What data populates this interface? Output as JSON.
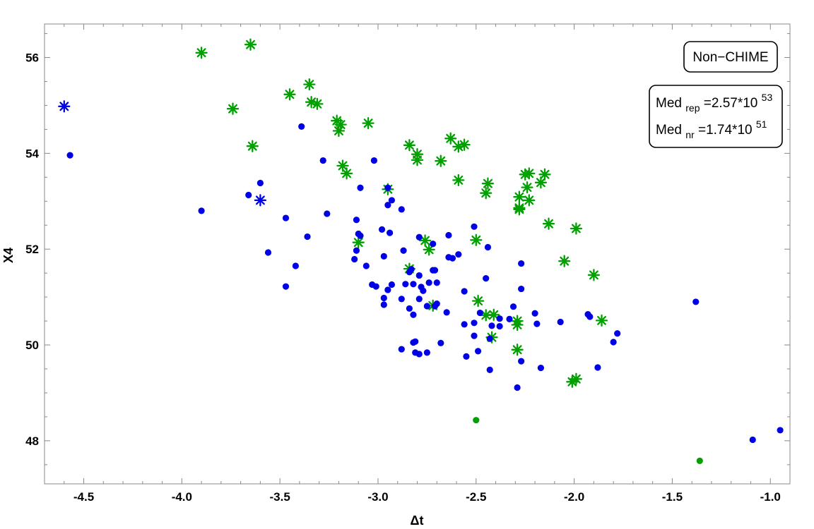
{
  "chart_data": {
    "type": "scatter",
    "xlabel": "Δt",
    "ylabel": "X4",
    "xlim": [
      -4.7,
      -0.9
    ],
    "ylim": [
      47.1,
      56.7
    ],
    "x_ticks": [
      -4.5,
      -4.0,
      -3.5,
      -3.0,
      -2.5,
      -2.0,
      -1.5,
      -1.0
    ],
    "x_tick_labels": [
      "-4.5",
      "-4.0",
      "-3.5",
      "-3.0",
      "-2.5",
      "-2.0",
      "-1.5",
      "-1.0"
    ],
    "y_ticks": [
      48,
      50,
      52,
      54,
      56
    ],
    "y_tick_labels": [
      "48",
      "50",
      "52",
      "54",
      "56"
    ],
    "grid": false,
    "colors": {
      "blue": "#0000e6",
      "green": "#00a000"
    },
    "annotations": {
      "category_box": "Non−CHIME",
      "median_rep": {
        "main": "Med",
        "sub": "rep",
        "value": "=2.57*10",
        "exp": "53"
      },
      "median_nr": {
        "main": "Med",
        "sub": "nr",
        "value": "=1.74*10",
        "exp": "51"
      }
    },
    "series": [
      {
        "color": "#00a000",
        "marker": "star",
        "points": [
          [
            -3.9,
            56.1
          ],
          [
            -3.65,
            56.27
          ],
          [
            -3.74,
            54.93
          ],
          [
            -3.64,
            54.15
          ],
          [
            -3.45,
            55.23
          ],
          [
            -3.35,
            55.44
          ],
          [
            -3.34,
            55.07
          ],
          [
            -3.31,
            55.03
          ],
          [
            -3.21,
            54.68
          ],
          [
            -3.19,
            54.6
          ],
          [
            -3.2,
            54.47
          ],
          [
            -3.05,
            54.63
          ],
          [
            -3.18,
            53.74
          ],
          [
            -3.16,
            53.58
          ],
          [
            -2.84,
            54.17
          ],
          [
            -2.8,
            53.98
          ],
          [
            -2.8,
            53.86
          ],
          [
            -2.68,
            53.84
          ],
          [
            -2.63,
            54.31
          ],
          [
            -2.59,
            54.14
          ],
          [
            -2.56,
            54.18
          ],
          [
            -2.59,
            53.44
          ],
          [
            -2.45,
            53.17
          ],
          [
            -2.44,
            53.37
          ],
          [
            -2.28,
            53.09
          ],
          [
            -2.28,
            52.86
          ],
          [
            -2.28,
            52.83
          ],
          [
            -2.25,
            53.56
          ],
          [
            -2.23,
            53.58
          ],
          [
            -2.24,
            53.29
          ],
          [
            -2.23,
            53.02
          ],
          [
            -2.17,
            53.39
          ],
          [
            -2.15,
            53.56
          ],
          [
            -2.13,
            52.53
          ],
          [
            -1.99,
            52.43
          ],
          [
            -2.05,
            51.75
          ],
          [
            -2.76,
            52.18
          ],
          [
            -2.74,
            51.99
          ],
          [
            -2.5,
            52.19
          ],
          [
            -3.1,
            52.14
          ],
          [
            -2.95,
            53.25
          ],
          [
            -2.84,
            51.59
          ],
          [
            -2.72,
            50.82
          ],
          [
            -2.49,
            50.92
          ],
          [
            -2.45,
            50.62
          ],
          [
            -2.41,
            50.63
          ],
          [
            -2.42,
            50.16
          ],
          [
            -2.29,
            50.5
          ],
          [
            -2.29,
            50.42
          ],
          [
            -2.29,
            49.9
          ],
          [
            -1.9,
            51.46
          ],
          [
            -1.86,
            50.51
          ],
          [
            -2.01,
            49.23
          ],
          [
            -1.99,
            49.29
          ]
        ]
      },
      {
        "color": "#0000e6",
        "marker": "star",
        "points": [
          [
            -4.6,
            54.98
          ],
          [
            -3.6,
            53.02
          ]
        ]
      },
      {
        "color": "#0000e6",
        "marker": "dot",
        "points": [
          [
            -4.57,
            53.96
          ],
          [
            -3.9,
            52.8
          ],
          [
            -3.66,
            53.13
          ],
          [
            -3.6,
            53.38
          ],
          [
            -3.39,
            54.56
          ],
          [
            -3.28,
            53.85
          ],
          [
            -3.47,
            52.65
          ],
          [
            -3.36,
            52.26
          ],
          [
            -3.26,
            52.74
          ],
          [
            -3.56,
            51.93
          ],
          [
            -3.42,
            51.65
          ],
          [
            -3.47,
            51.22
          ],
          [
            -3.02,
            53.85
          ],
          [
            -3.09,
            53.28
          ],
          [
            -2.95,
            53.28
          ],
          [
            -2.93,
            53.02
          ],
          [
            -2.95,
            52.92
          ],
          [
            -3.11,
            52.61
          ],
          [
            -3.1,
            52.32
          ],
          [
            -3.09,
            52.28
          ],
          [
            -2.98,
            52.41
          ],
          [
            -2.94,
            52.34
          ],
          [
            -2.88,
            52.83
          ],
          [
            -3.12,
            51.79
          ],
          [
            -3.11,
            51.97
          ],
          [
            -3.06,
            51.65
          ],
          [
            -2.97,
            51.85
          ],
          [
            -2.87,
            51.97
          ],
          [
            -2.84,
            51.52
          ],
          [
            -2.79,
            52.25
          ],
          [
            -2.72,
            52.11
          ],
          [
            -2.64,
            52.29
          ],
          [
            -2.64,
            51.83
          ],
          [
            -2.62,
            51.81
          ],
          [
            -2.59,
            51.89
          ],
          [
            -2.51,
            52.47
          ],
          [
            -2.44,
            52.04
          ],
          [
            -2.79,
            51.45
          ],
          [
            -2.72,
            51.56
          ],
          [
            -2.71,
            51.56
          ],
          [
            -2.83,
            51.58
          ],
          [
            -2.86,
            51.27
          ],
          [
            -2.82,
            51.27
          ],
          [
            -2.78,
            51.21
          ],
          [
            -2.77,
            51.13
          ],
          [
            -2.74,
            51.3
          ],
          [
            -2.7,
            51.3
          ],
          [
            -2.56,
            51.12
          ],
          [
            -2.45,
            51.39
          ],
          [
            -3.03,
            51.26
          ],
          [
            -3.01,
            51.22
          ],
          [
            -2.97,
            50.98
          ],
          [
            -2.93,
            51.26
          ],
          [
            -2.95,
            51.15
          ],
          [
            -2.97,
            50.84
          ],
          [
            -2.88,
            50.96
          ],
          [
            -2.84,
            50.76
          ],
          [
            -2.82,
            50.63
          ],
          [
            -2.79,
            50.96
          ],
          [
            -2.75,
            50.81
          ],
          [
            -2.71,
            50.81
          ],
          [
            -2.7,
            50.86
          ],
          [
            -2.65,
            50.68
          ],
          [
            -2.56,
            50.43
          ],
          [
            -2.51,
            50.46
          ],
          [
            -2.51,
            50.19
          ],
          [
            -2.48,
            50.67
          ],
          [
            -2.42,
            50.4
          ],
          [
            -2.43,
            50.13
          ],
          [
            -2.38,
            50.39
          ],
          [
            -2.38,
            50.55
          ],
          [
            -2.33,
            50.54
          ],
          [
            -2.31,
            50.8
          ],
          [
            -2.27,
            51.7
          ],
          [
            -2.27,
            51.17
          ],
          [
            -2.2,
            50.66
          ],
          [
            -2.19,
            50.44
          ],
          [
            -2.07,
            50.48
          ],
          [
            -1.93,
            50.64
          ],
          [
            -1.92,
            50.59
          ],
          [
            -1.78,
            50.24
          ],
          [
            -1.8,
            50.06
          ],
          [
            -2.82,
            50.05
          ],
          [
            -2.81,
            50.07
          ],
          [
            -2.88,
            49.91
          ],
          [
            -2.81,
            49.84
          ],
          [
            -2.79,
            49.81
          ],
          [
            -2.75,
            49.84
          ],
          [
            -2.68,
            50.04
          ],
          [
            -2.55,
            49.76
          ],
          [
            -2.49,
            49.87
          ],
          [
            -2.43,
            49.48
          ],
          [
            -2.27,
            49.66
          ],
          [
            -2.17,
            49.52
          ],
          [
            -2.29,
            49.11
          ],
          [
            -1.88,
            49.53
          ],
          [
            -1.38,
            50.9
          ],
          [
            -1.09,
            48.02
          ],
          [
            -0.95,
            48.22
          ]
        ]
      },
      {
        "color": "#00a000",
        "marker": "dot",
        "points": [
          [
            -2.5,
            48.43
          ],
          [
            -1.36,
            47.58
          ]
        ]
      }
    ]
  }
}
